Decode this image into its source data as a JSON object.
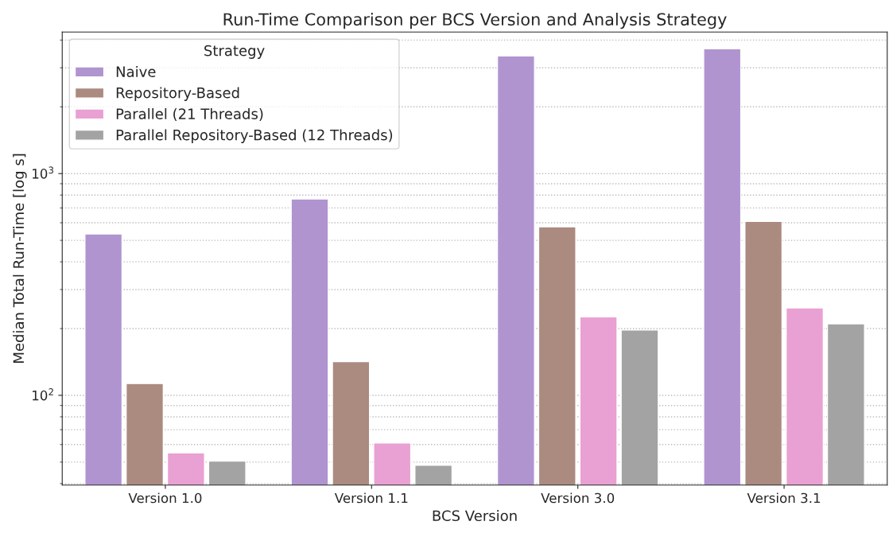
{
  "chart_data": {
    "type": "bar",
    "title": "Run-Time Comparison per BCS Version and Analysis Strategy",
    "xlabel": "BCS Version",
    "ylabel": "Median Total Run-Time [log s]",
    "legend_title": "Strategy",
    "categories": [
      "Version 1.0",
      "Version 1.1",
      "Version 3.0",
      "Version 3.1"
    ],
    "series": [
      {
        "name": "Naive",
        "color": "#b094d0",
        "values": [
          534,
          768,
          3390,
          3655
        ]
      },
      {
        "name": "Repository-Based",
        "color": "#ab8a80",
        "values": [
          113,
          142,
          575,
          609
        ]
      },
      {
        "name": "Parallel (21 Threads)",
        "color": "#e9a0d2",
        "values": [
          55,
          61,
          226,
          248
        ]
      },
      {
        "name": "Parallel Repository-Based (12 Threads)",
        "color": "#a3a3a3",
        "values": [
          50.5,
          48.4,
          197,
          210
        ]
      }
    ],
    "log": true,
    "ylim": [
      39.4,
      4350
    ],
    "yticks": [
      {
        "value": 100,
        "label": "10$^{2}$"
      },
      {
        "value": 1000,
        "label": "10$^{3}$"
      }
    ],
    "grid": "y",
    "legend": "top left"
  }
}
